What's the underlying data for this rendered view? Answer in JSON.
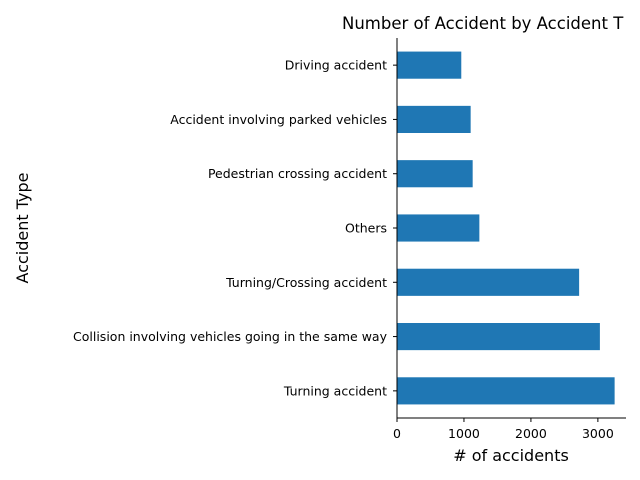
{
  "chart_data": {
    "type": "bar",
    "orientation": "horizontal",
    "title": "Number of Accident by Accident T",
    "xlabel": "# of accidents",
    "ylabel": "Accident Type",
    "categories": [
      "Turning accident",
      "Collision involving vehicles going in the same way",
      "Turning/Crossing accident",
      "Others",
      "Pedestrian crossing accident",
      "Accident involving parked vehicles",
      "Driving accident"
    ],
    "values": [
      3250,
      3030,
      2720,
      1230,
      1130,
      1100,
      960
    ],
    "xlim": [
      0,
      3420
    ],
    "xticks": [
      0,
      1000,
      2000,
      3000
    ],
    "xtick_labels": [
      "0",
      "1000",
      "2000",
      "3000"
    ],
    "bar_color": "#1f77b4",
    "grid": false,
    "legend": "none"
  }
}
